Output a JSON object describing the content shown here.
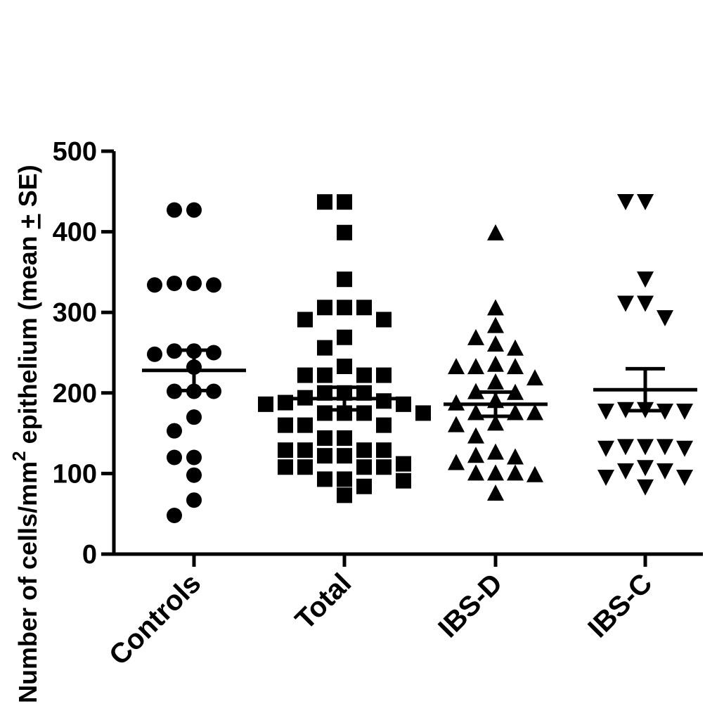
{
  "chart_data": {
    "type": "scatter",
    "title": "",
    "xlabel": "",
    "ylabel_parts": {
      "before_superscript": "Number of cells/mm",
      "superscript": "2",
      "after_superscript": " epithelium (mean ",
      "plus_minus": "+",
      "end": " SE)"
    },
    "ylim": [
      0,
      500
    ],
    "yticks": [
      "0",
      "100",
      "200",
      "300",
      "400",
      "500"
    ],
    "grid": false,
    "categories": [
      "Controls",
      "Total",
      "IBS-D",
      "IBS-C"
    ],
    "series": [
      {
        "category": "Controls",
        "marker": "circle",
        "mean": 228,
        "se_upper": 253,
        "se_lower": 203,
        "values": [
          427,
          427,
          336,
          334,
          334,
          336,
          252,
          248,
          250,
          252,
          232,
          202,
          202,
          202,
          170,
          153,
          120,
          120,
          98,
          67,
          48
        ]
      },
      {
        "category": "Total",
        "marker": "square",
        "mean": 193,
        "se_upper": 207,
        "se_lower": 179,
        "values": [
          437,
          437,
          399,
          341,
          306,
          306,
          306,
          291,
          291,
          269,
          256,
          233,
          222,
          222,
          222,
          222,
          200,
          200,
          200,
          194,
          190,
          188,
          186,
          186,
          175,
          175,
          175,
          175,
          160,
          160,
          160,
          144,
          144,
          129,
          129,
          129,
          129,
          122,
          122,
          112,
          108,
          108,
          108,
          108,
          93,
          93,
          91,
          84,
          73
        ]
      },
      {
        "category": "IBS-D",
        "marker": "triangle-up",
        "mean": 186,
        "se_upper": 201,
        "se_lower": 171,
        "values": [
          398,
          305,
          283,
          268,
          260,
          255,
          235,
          232,
          232,
          232,
          218,
          213,
          201,
          200,
          190,
          187,
          175,
          175,
          175,
          162,
          160,
          146,
          126,
          122,
          120,
          113,
          100,
          100,
          100,
          98,
          75
        ]
      },
      {
        "category": "IBS-C",
        "marker": "triangle-down",
        "mean": 204,
        "se_upper": 230,
        "se_lower": 178,
        "values": [
          438,
          438,
          342,
          312,
          312,
          294,
          180,
          180,
          178,
          178,
          178,
          134,
          134,
          134,
          132,
          132,
          108,
          104,
          104,
          96,
          96,
          84
        ]
      }
    ]
  }
}
